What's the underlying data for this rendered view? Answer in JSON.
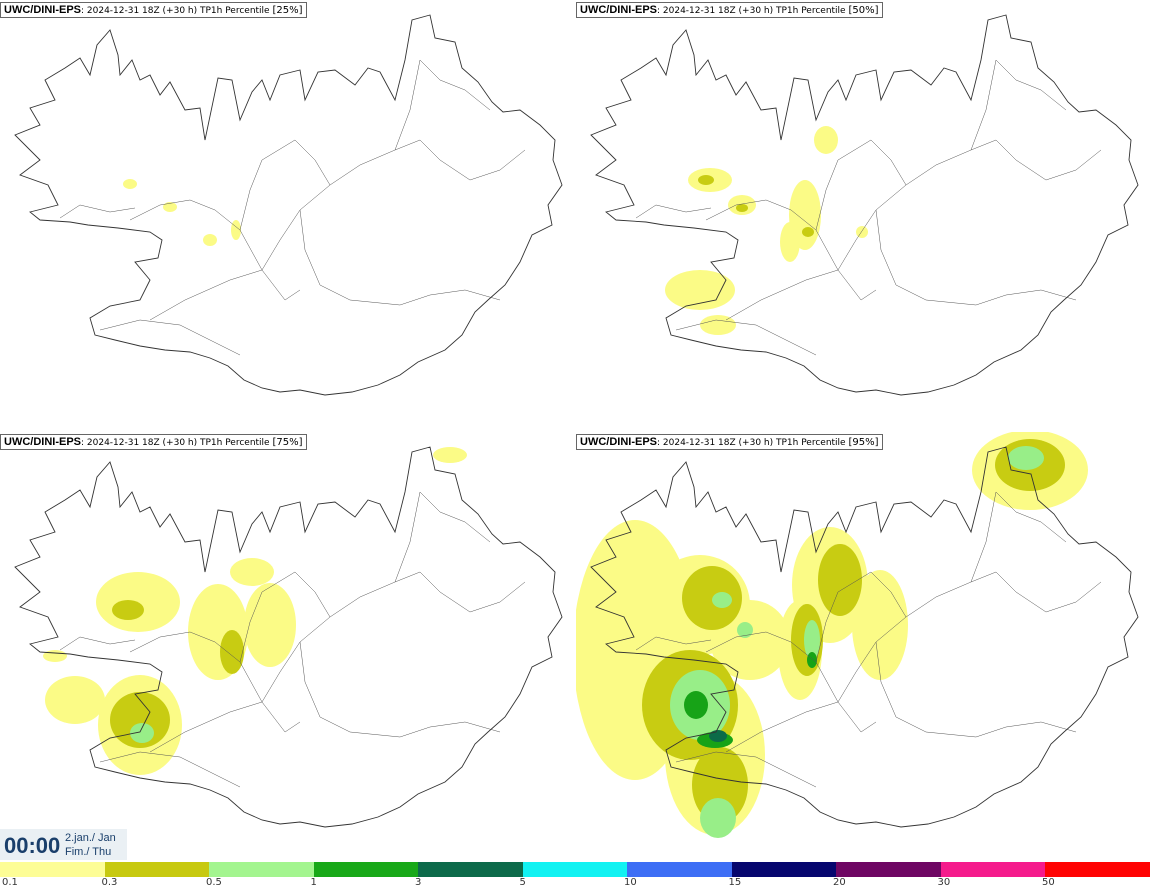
{
  "panels": [
    {
      "model": "UWC/DINI-EPS",
      "run": ": 2024-12-31 18Z (+30 h) TP1h Percentile",
      "pct": "[25%]",
      "level": 0
    },
    {
      "model": "UWC/DINI-EPS",
      "run": ": 2024-12-31 18Z (+30 h) TP1h Percentile",
      "pct": "[50%]",
      "level": 1
    },
    {
      "model": "UWC/DINI-EPS",
      "run": ": 2024-12-31 18Z (+30 h) TP1h Percentile",
      "pct": "[75%]",
      "level": 2
    },
    {
      "model": "UWC/DINI-EPS",
      "run": ": 2024-12-31 18Z (+30 h) TP1h Percentile",
      "pct": "[95%]",
      "level": 3
    }
  ],
  "clock": {
    "time": "00:00",
    "date_line1": "2.jan./ Jan",
    "date_line2": "Fim./ Thu"
  },
  "legend": {
    "labels": [
      "0.1",
      "0.3",
      "0.5",
      "1",
      "3",
      "5",
      "10",
      "15",
      "20",
      "30",
      "50"
    ],
    "colors": [
      "#fdfd96",
      "#c7c90f",
      "#a3f58f",
      "#18a818",
      "#0c6a4a",
      "#12f2f2",
      "#3d6ef5",
      "#06066e",
      "#6e0663",
      "#f51b8c",
      "#ff0303"
    ]
  },
  "colors": {
    "light_yellow": "#fbfb86",
    "olive": "#c8cc12",
    "light_green": "#98ee88",
    "green": "#17a317",
    "dark_green": "#0b6b48"
  }
}
